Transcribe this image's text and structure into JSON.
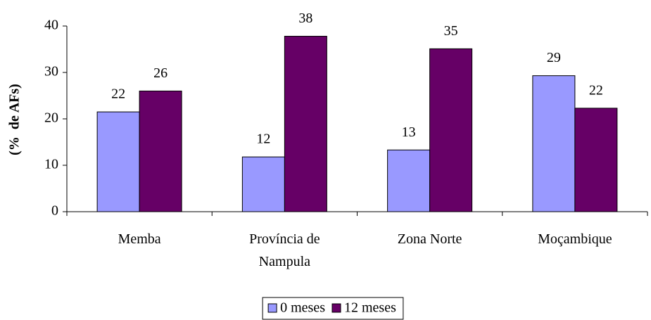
{
  "chart_data": {
    "type": "bar",
    "y_label": "(%  de AFs)",
    "categories": [
      "Memba",
      "Província de Nampula",
      "Zona Norte",
      "Moçambique"
    ],
    "series": [
      {
        "name": "0 meses",
        "color": "#9999ff",
        "values": [
          21.5,
          11.8,
          13.3,
          29.3
        ],
        "value_labels": [
          "22",
          "12",
          "13",
          "29"
        ]
      },
      {
        "name": "12 meses",
        "color": "#660066",
        "values": [
          26,
          37.8,
          35.1,
          22.3
        ],
        "value_labels": [
          "26",
          "38",
          "35",
          "22"
        ]
      }
    ],
    "ylim": [
      0,
      40
    ],
    "yticks": [
      0,
      10,
      20,
      30,
      40
    ],
    "grid": false,
    "legend": "bottom"
  }
}
